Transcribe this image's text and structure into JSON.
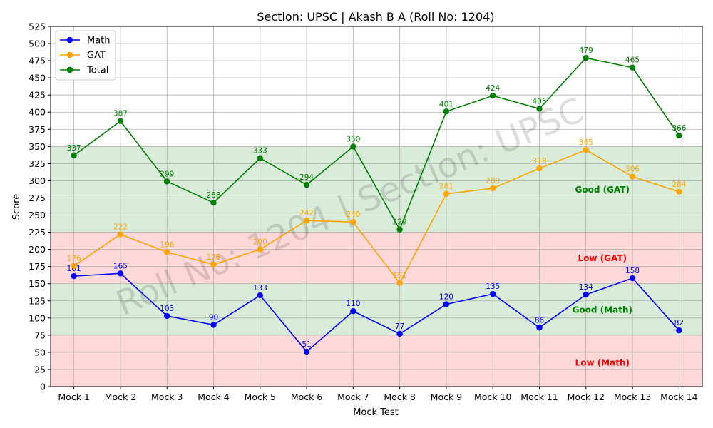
{
  "chart_data": {
    "type": "line",
    "title": "Section: UPSC | Akash B A  (Roll No: 1204)",
    "xlabel": "Mock Test",
    "ylabel": "Score",
    "ylim": [
      0,
      525
    ],
    "y_tick_step": 25,
    "grid": true,
    "legend_position": "upper-left",
    "categories": [
      "Mock 1",
      "Mock 2",
      "Mock 3",
      "Mock 4",
      "Mock 5",
      "Mock 6",
      "Mock 7",
      "Mock 8",
      "Mock 9",
      "Mock 10",
      "Mock 11",
      "Mock 12",
      "Mock 13",
      "Mock 14"
    ],
    "series": [
      {
        "name": "Math",
        "color": "#0000ff",
        "values": [
          161,
          165,
          103,
          90,
          133,
          51,
          110,
          77,
          120,
          135,
          86,
          134,
          158,
          82
        ]
      },
      {
        "name": "GAT",
        "color": "#ffa500",
        "values": [
          176,
          222,
          196,
          178,
          200,
          242,
          240,
          151,
          281,
          289,
          318,
          345,
          306,
          284
        ]
      },
      {
        "name": "Total",
        "color": "#008000",
        "values": [
          337,
          387,
          299,
          268,
          333,
          294,
          350,
          229,
          401,
          424,
          405,
          479,
          465,
          366
        ]
      }
    ],
    "bands": [
      {
        "from": 0,
        "to": 75,
        "color": "#ffb3b3",
        "label": "Low (Math)",
        "label_color": "#ff0000",
        "label_value": 35
      },
      {
        "from": 75,
        "to": 150,
        "color": "#b3d9b3",
        "label": "Good (Math)",
        "label_color": "#008000",
        "label_value": 112
      },
      {
        "from": 150,
        "to": 225,
        "color": "#ffb3b3",
        "label": "Low (GAT)",
        "label_color": "#ff0000",
        "label_value": 187
      },
      {
        "from": 225,
        "to": 350,
        "color": "#b3d9b3",
        "label": "Good (GAT)",
        "label_color": "#008000",
        "label_value": 287
      }
    ],
    "watermark": "Roll No: 1204 | Section: UPSC"
  }
}
